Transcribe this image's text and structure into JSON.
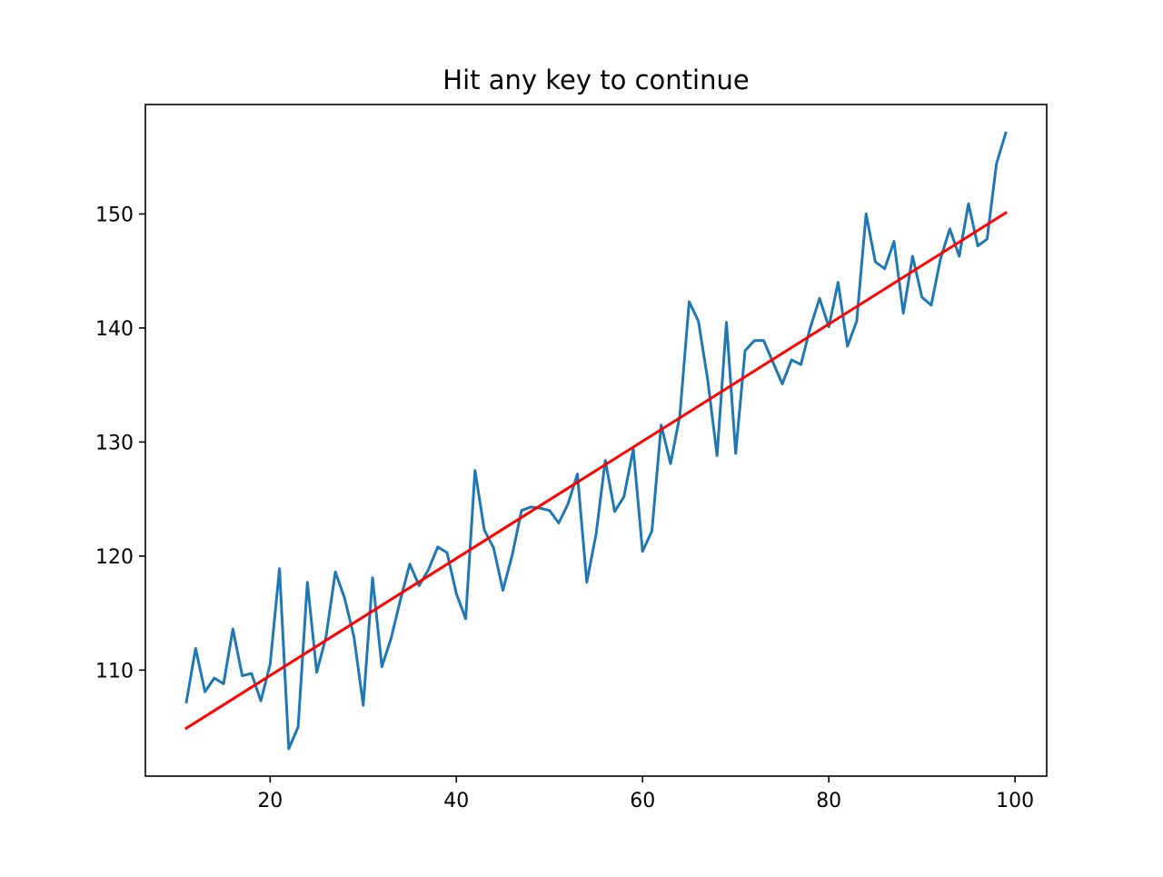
{
  "chart_data": {
    "type": "line",
    "title": "Hit any key to continue",
    "xlabel": "",
    "ylabel": "",
    "xlim": [
      6.6,
      103.4
    ],
    "ylim": [
      100.7,
      159.6
    ],
    "xticks": [
      20,
      40,
      60,
      80,
      100
    ],
    "yticks": [
      110,
      120,
      130,
      140,
      150
    ],
    "grid": false,
    "legend": "none",
    "series": [
      {
        "color": "#1f77b4",
        "x": [
          11,
          12,
          13,
          14,
          15,
          16,
          17,
          18,
          19,
          20,
          21,
          22,
          23,
          24,
          25,
          26,
          27,
          28,
          29,
          30,
          31,
          32,
          33,
          34,
          35,
          36,
          37,
          38,
          39,
          40,
          41,
          42,
          43,
          44,
          45,
          46,
          47,
          48,
          49,
          50,
          51,
          52,
          53,
          54,
          55,
          56,
          57,
          58,
          59,
          60,
          61,
          62,
          63,
          64,
          65,
          66,
          67,
          68,
          69,
          70,
          71,
          72,
          73,
          74,
          75,
          76,
          77,
          78,
          79,
          80,
          81,
          82,
          83,
          84,
          85,
          86,
          87,
          88,
          89,
          90,
          91,
          92,
          93,
          94,
          95,
          96,
          97,
          98,
          99
        ],
        "values": [
          107.2,
          111.9,
          108.1,
          109.3,
          108.8,
          113.6,
          109.5,
          109.7,
          107.3,
          110.5,
          118.9,
          103.1,
          105.0,
          117.7,
          109.8,
          112.9,
          118.6,
          116.3,
          112.9,
          106.9,
          118.1,
          110.3,
          112.8,
          116.2,
          119.3,
          117.4,
          118.8,
          120.8,
          120.3,
          116.7,
          114.5,
          127.5,
          122.3,
          120.7,
          117.0,
          120.1,
          124.0,
          124.3,
          124.2,
          124.0,
          122.9,
          124.6,
          127.2,
          117.7,
          121.9,
          128.4,
          123.9,
          125.2,
          129.4,
          120.4,
          122.2,
          131.5,
          128.1,
          132.3,
          142.3,
          140.6,
          135.4,
          128.8,
          140.5,
          129.0,
          138.0,
          138.9,
          138.9,
          137.0,
          135.1,
          137.2,
          136.8,
          140.0,
          142.6,
          140.1,
          144.0,
          138.4,
          140.6,
          150.0,
          145.8,
          145.2,
          147.6,
          141.3,
          146.3,
          142.7,
          142.0,
          146.1,
          148.7,
          146.3,
          150.9,
          147.2,
          147.8,
          154.4,
          157.1
        ]
      },
      {
        "color": "#ff0000",
        "x": [
          11,
          99
        ],
        "values": [
          104.9,
          150.1
        ]
      }
    ]
  }
}
